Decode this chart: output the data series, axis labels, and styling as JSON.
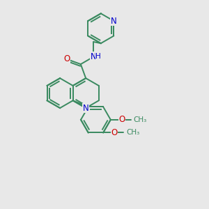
{
  "bg_color": "#e8e8e8",
  "bond_color": "#3a8a60",
  "bond_width": 1.4,
  "atom_colors": {
    "N": "#0000cc",
    "O": "#cc0000",
    "C": "#3a8a60"
  },
  "font_size": 8.5,
  "fig_size": [
    3.0,
    3.0
  ],
  "dpi": 100,
  "xlim": [
    0.0,
    10.0
  ],
  "ylim": [
    0.0,
    10.0
  ]
}
